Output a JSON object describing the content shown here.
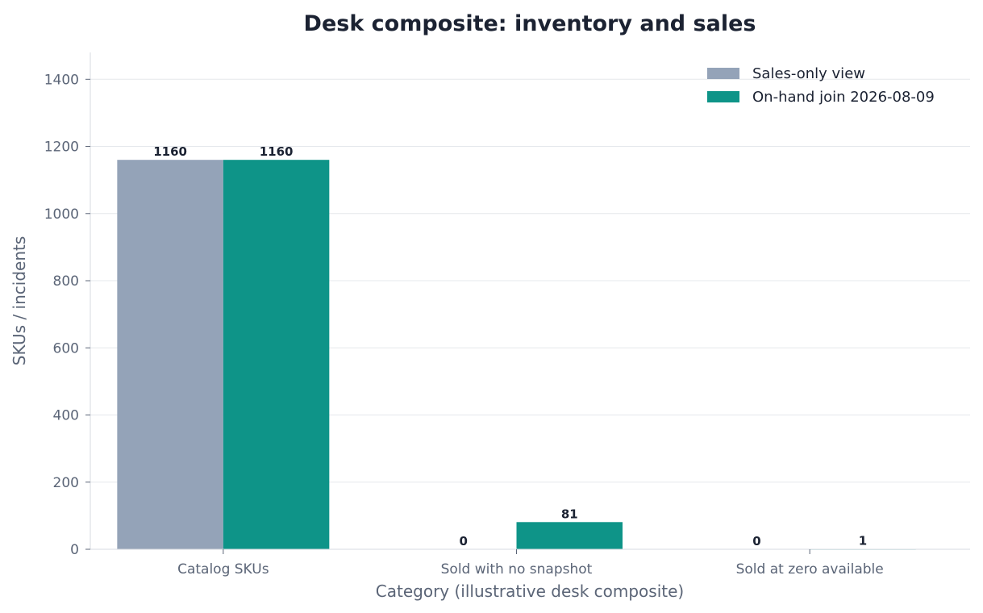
{
  "chart_data": {
    "type": "bar",
    "title": "Desk composite: inventory and sales",
    "xlabel": "Category (illustrative desk composite)",
    "ylabel": "SKUs / incidents",
    "categories": [
      "Catalog SKUs",
      "Sold with no snapshot",
      "Sold at zero available"
    ],
    "series": [
      {
        "name": "Sales-only view",
        "values": [
          1160,
          0,
          0
        ],
        "color": "#94a3b8"
      },
      {
        "name": "On-hand join 2026-08-09",
        "values": [
          1160,
          81,
          1
        ],
        "color": "#0e9488"
      }
    ],
    "ylim": [
      0,
      1480
    ],
    "yticks": [
      0,
      200,
      400,
      600,
      800,
      1000,
      1200,
      1400
    ],
    "grid": true,
    "legend_position": "top-right"
  }
}
